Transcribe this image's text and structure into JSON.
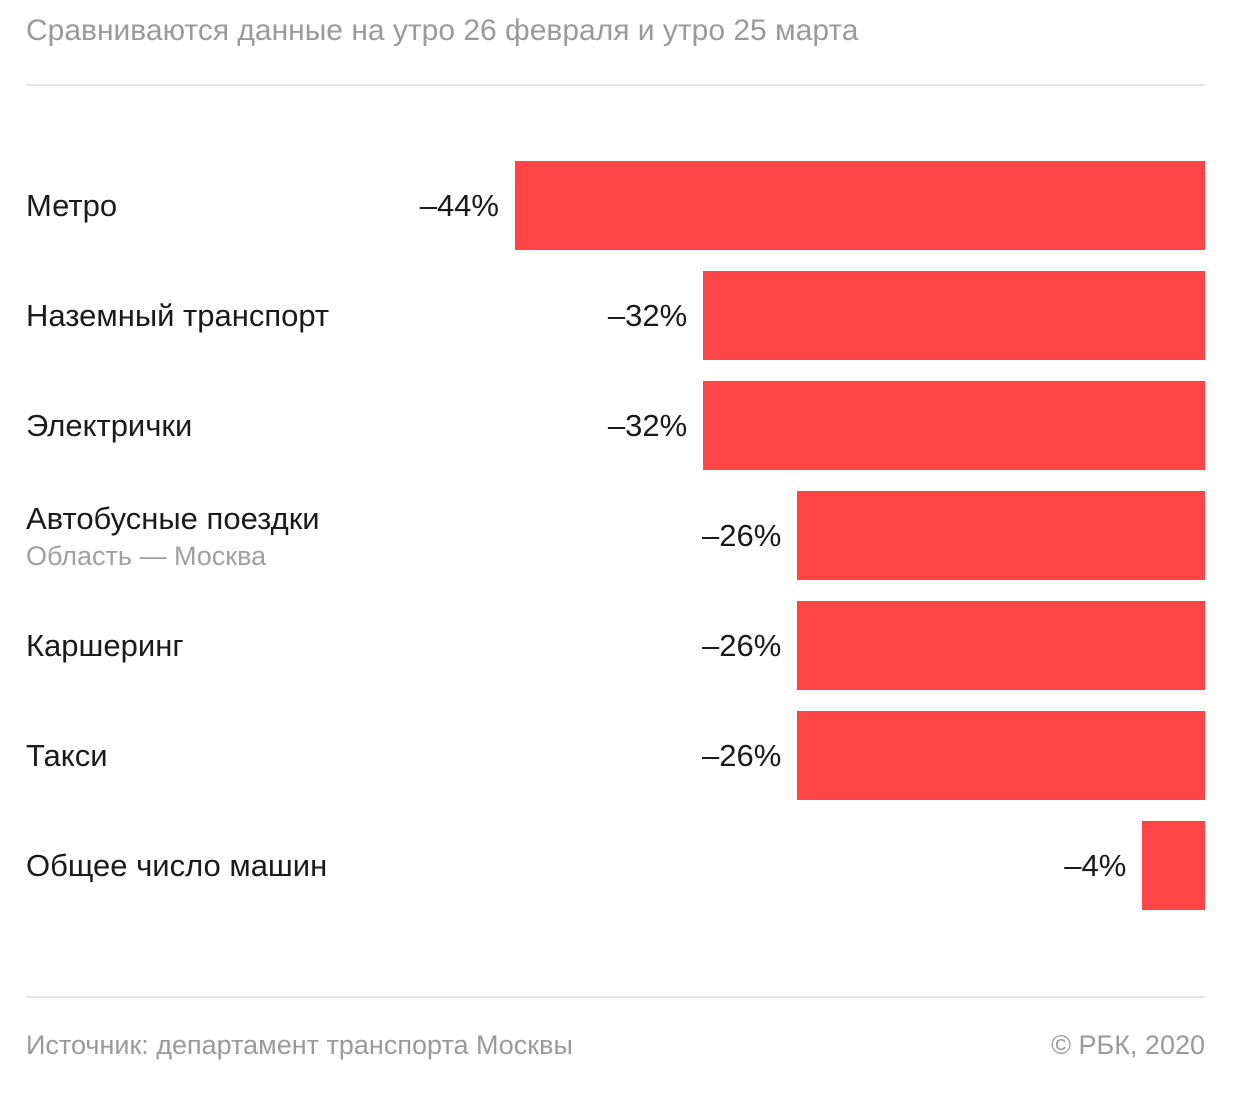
{
  "subtitle": "Сравниваются данные на утро 26 февраля и утро 25 марта",
  "footer": {
    "source": "Источник: департамент транспорта Москвы",
    "copyright": "© РБК, 2020"
  },
  "colors": {
    "bar": "#ff4545",
    "text": "#1a1a1a",
    "muted": "#9a9a9a"
  },
  "chart_data": {
    "type": "bar",
    "orientation": "horizontal",
    "categories": [
      "Метро",
      "Наземный транспорт",
      "Электрички",
      "Автобусные поездки",
      "Каршеринг",
      "Такси",
      "Общее число машин"
    ],
    "category_subtitles": [
      "",
      "",
      "",
      "Область — Москва",
      "",
      "",
      ""
    ],
    "values": [
      -44,
      -32,
      -32,
      -26,
      -26,
      -26,
      -4
    ],
    "value_labels": [
      "–44%",
      "–32%",
      "–32%",
      "–26%",
      "–26%",
      "–26%",
      "–4%"
    ],
    "title": "",
    "xlabel": "",
    "ylabel": "",
    "grid": false,
    "legend": "none"
  }
}
